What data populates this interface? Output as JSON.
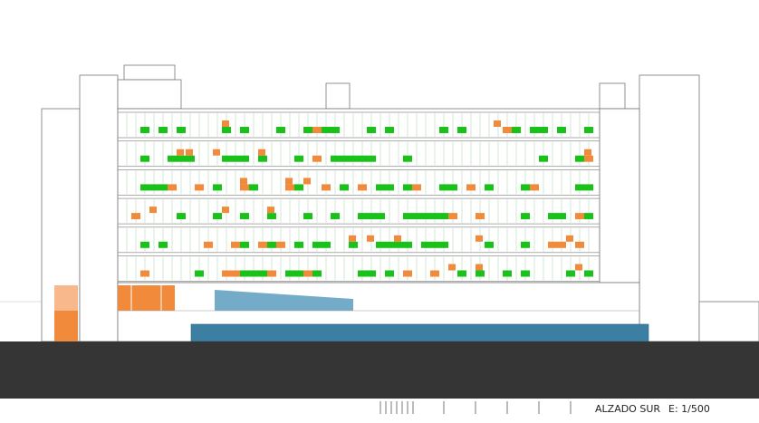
{
  "caption": {
    "title": "ALZADO SUR",
    "scale": "E: 1/500"
  }
}
